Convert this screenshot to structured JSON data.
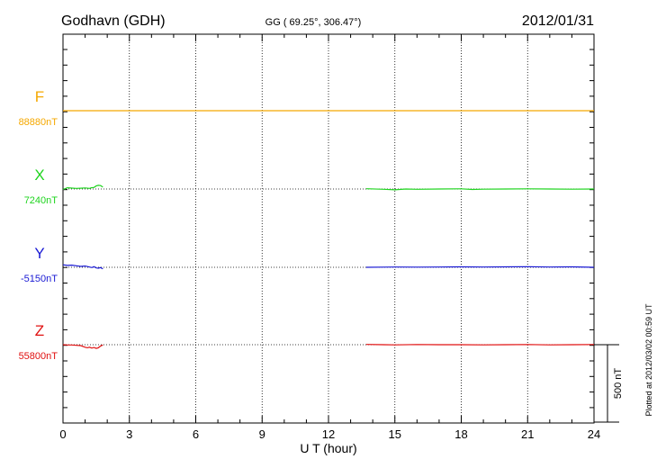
{
  "header": {
    "station": "Godhavn (GDH)",
    "coords": "GG ( 69.25°, 306.47°)",
    "date": "2012/01/31"
  },
  "side_note": "Plotted at 2012/03/02 00:59 UT",
  "scale_label": "500 nT",
  "chart_data": {
    "type": "line",
    "xlabel": "U T (hour)",
    "xlim": [
      0,
      24
    ],
    "xticks": [
      0,
      3,
      6,
      9,
      12,
      15,
      18,
      21,
      24
    ],
    "xtick_labels": [
      "0",
      "3",
      "6",
      "9",
      "12",
      "15",
      "18",
      "21",
      "24"
    ],
    "grid": true,
    "scale_nT": 500,
    "series": [
      {
        "name": "F",
        "baseline_label": "88880nT",
        "color": "#f5a800",
        "segments": [
          [
            [
              0,
              0
            ],
            [
              24,
              0
            ]
          ]
        ]
      },
      {
        "name": "X",
        "baseline_label": "7240nT",
        "color": "#1fd41f",
        "segments": [
          [
            [
              0.0,
              -3
            ],
            [
              0.2,
              8
            ],
            [
              0.4,
              6
            ],
            [
              0.6,
              4
            ],
            [
              0.8,
              5
            ],
            [
              1.0,
              7
            ],
            [
              1.2,
              4
            ],
            [
              1.3,
              9
            ],
            [
              1.4,
              10
            ],
            [
              1.5,
              20
            ],
            [
              1.6,
              24
            ],
            [
              1.7,
              22
            ],
            [
              1.8,
              12
            ]
          ],
          [
            [
              13.7,
              2
            ],
            [
              14.5,
              -2
            ],
            [
              15.0,
              -5
            ],
            [
              15.5,
              0
            ],
            [
              16.0,
              -2
            ],
            [
              17.0,
              0
            ],
            [
              18.0,
              1
            ],
            [
              18.5,
              -3
            ],
            [
              19.0,
              -1
            ],
            [
              20.0,
              0
            ],
            [
              21.0,
              1
            ],
            [
              22.0,
              0
            ],
            [
              23.0,
              -1
            ],
            [
              24.0,
              0
            ]
          ]
        ]
      },
      {
        "name": "Y",
        "baseline_label": "-5150nT",
        "color": "#1a1ad4",
        "segments": [
          [
            [
              0.0,
              16
            ],
            [
              0.2,
              12
            ],
            [
              0.4,
              14
            ],
            [
              0.6,
              10
            ],
            [
              0.8,
              6
            ],
            [
              1.0,
              8
            ],
            [
              1.2,
              2
            ],
            [
              1.3,
              -2
            ],
            [
              1.4,
              4
            ],
            [
              1.5,
              -4
            ],
            [
              1.6,
              -6
            ],
            [
              1.7,
              -2
            ],
            [
              1.8,
              -10
            ]
          ],
          [
            [
              13.7,
              0
            ],
            [
              14.5,
              1
            ],
            [
              15.0,
              2
            ],
            [
              16.0,
              1
            ],
            [
              17.0,
              2
            ],
            [
              18.0,
              3
            ],
            [
              19.0,
              2
            ],
            [
              20.0,
              3
            ],
            [
              21.0,
              4
            ],
            [
              22.0,
              2
            ],
            [
              23.0,
              3
            ],
            [
              24.0,
              0
            ]
          ]
        ]
      },
      {
        "name": "Z",
        "baseline_label": "55800nT",
        "color": "#e01010",
        "segments": [
          [
            [
              0.0,
              0
            ],
            [
              0.2,
              -2
            ],
            [
              0.4,
              -2
            ],
            [
              0.6,
              -4
            ],
            [
              0.8,
              -6
            ],
            [
              1.0,
              -16
            ],
            [
              1.1,
              -20
            ],
            [
              1.2,
              -16
            ],
            [
              1.3,
              -22
            ],
            [
              1.4,
              -18
            ],
            [
              1.5,
              -24
            ],
            [
              1.6,
              -20
            ],
            [
              1.7,
              -8
            ],
            [
              1.8,
              -2
            ]
          ],
          [
            [
              13.7,
              2
            ],
            [
              14.5,
              0
            ],
            [
              15.0,
              -1
            ],
            [
              16.0,
              1
            ],
            [
              17.0,
              0
            ],
            [
              18.0,
              0
            ],
            [
              19.0,
              -1
            ],
            [
              20.0,
              0
            ],
            [
              21.0,
              1
            ],
            [
              22.0,
              -1
            ],
            [
              23.0,
              0
            ],
            [
              24.0,
              1
            ]
          ]
        ]
      }
    ]
  }
}
